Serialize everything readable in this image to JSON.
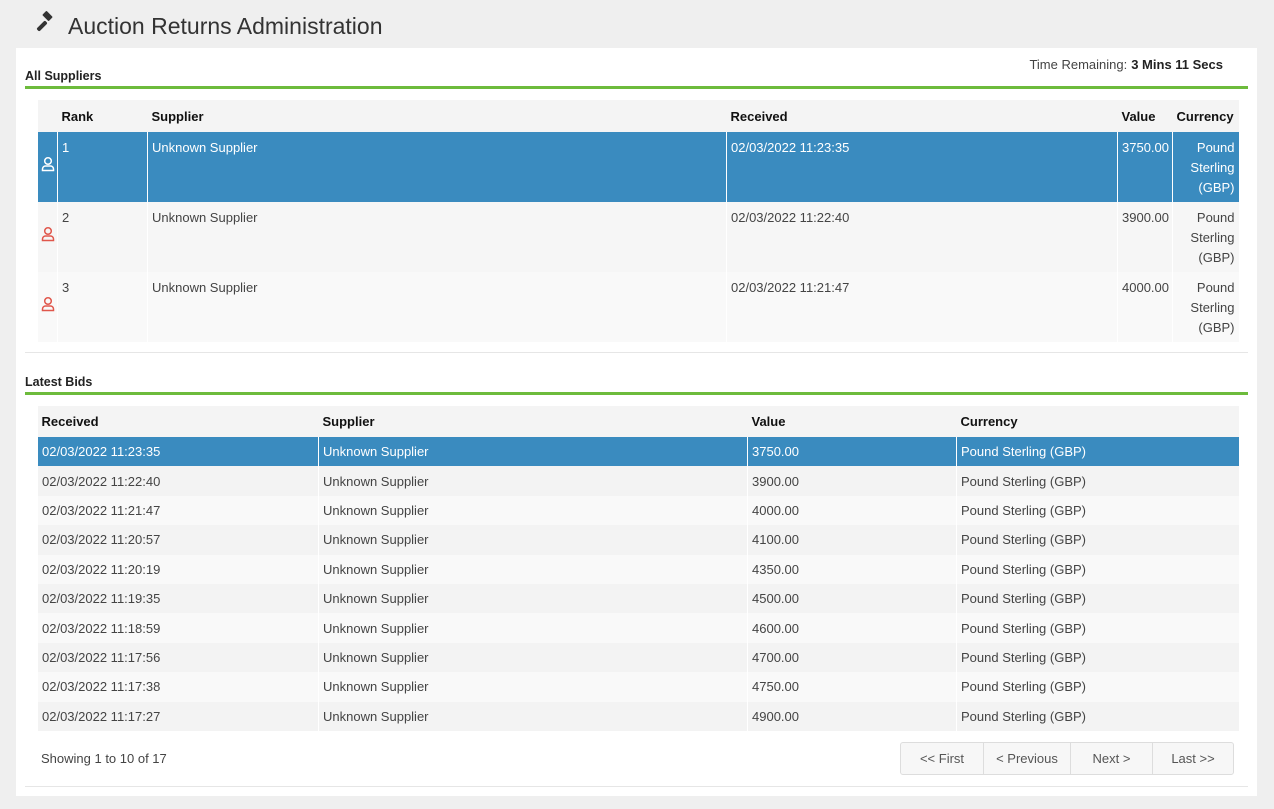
{
  "header": {
    "title": "Auction Returns Administration",
    "icon": "gavel-icon"
  },
  "all_suppliers": {
    "section_title": "All Suppliers",
    "time_remaining_label": "Time Remaining:",
    "time_remaining_value": "3 Mins 11 Secs",
    "columns": [
      "Rank",
      "Supplier",
      "Received",
      "Value",
      "Currency"
    ],
    "rows": [
      {
        "rank": "1",
        "supplier": "Unknown Supplier",
        "received": "02/03/2022 11:23:35",
        "value": "3750.00",
        "currency": "Pound Sterling (GBP)",
        "selected": true,
        "icon_color": "#ffffff"
      },
      {
        "rank": "2",
        "supplier": "Unknown Supplier",
        "received": "02/03/2022 11:22:40",
        "value": "3900.00",
        "currency": "Pound Sterling (GBP)",
        "icon_color": "#e0564b"
      },
      {
        "rank": "3",
        "supplier": "Unknown Supplier",
        "received": "02/03/2022 11:21:47",
        "value": "4000.00",
        "currency": "Pound Sterling (GBP)",
        "icon_color": "#e0564b"
      }
    ]
  },
  "latest_bids": {
    "section_title": "Latest Bids",
    "columns": [
      "Received",
      "Supplier",
      "Value",
      "Currency"
    ],
    "rows": [
      {
        "received": "02/03/2022 11:23:35",
        "supplier": "Unknown Supplier",
        "value": "3750.00",
        "currency": "Pound Sterling (GBP)",
        "selected": true
      },
      {
        "received": "02/03/2022 11:22:40",
        "supplier": "Unknown Supplier",
        "value": "3900.00",
        "currency": "Pound Sterling (GBP)"
      },
      {
        "received": "02/03/2022 11:21:47",
        "supplier": "Unknown Supplier",
        "value": "4000.00",
        "currency": "Pound Sterling (GBP)"
      },
      {
        "received": "02/03/2022 11:20:57",
        "supplier": "Unknown Supplier",
        "value": "4100.00",
        "currency": "Pound Sterling (GBP)"
      },
      {
        "received": "02/03/2022 11:20:19",
        "supplier": "Unknown Supplier",
        "value": "4350.00",
        "currency": "Pound Sterling (GBP)"
      },
      {
        "received": "02/03/2022 11:19:35",
        "supplier": "Unknown Supplier",
        "value": "4500.00",
        "currency": "Pound Sterling (GBP)"
      },
      {
        "received": "02/03/2022 11:18:59",
        "supplier": "Unknown Supplier",
        "value": "4600.00",
        "currency": "Pound Sterling (GBP)"
      },
      {
        "received": "02/03/2022 11:17:56",
        "supplier": "Unknown Supplier",
        "value": "4700.00",
        "currency": "Pound Sterling (GBP)"
      },
      {
        "received": "02/03/2022 11:17:38",
        "supplier": "Unknown Supplier",
        "value": "4750.00",
        "currency": "Pound Sterling (GBP)"
      },
      {
        "received": "02/03/2022 11:17:27",
        "supplier": "Unknown Supplier",
        "value": "4900.00",
        "currency": "Pound Sterling (GBP)"
      }
    ],
    "showing": "Showing 1 to 10 of 17",
    "pagination": [
      "<< First",
      "< Previous",
      "Next >",
      "Last >>"
    ]
  },
  "colors": {
    "accent_green": "#6dbb3c",
    "selected_row": "#3a8bbf",
    "rank_icon": "#e0564b"
  }
}
